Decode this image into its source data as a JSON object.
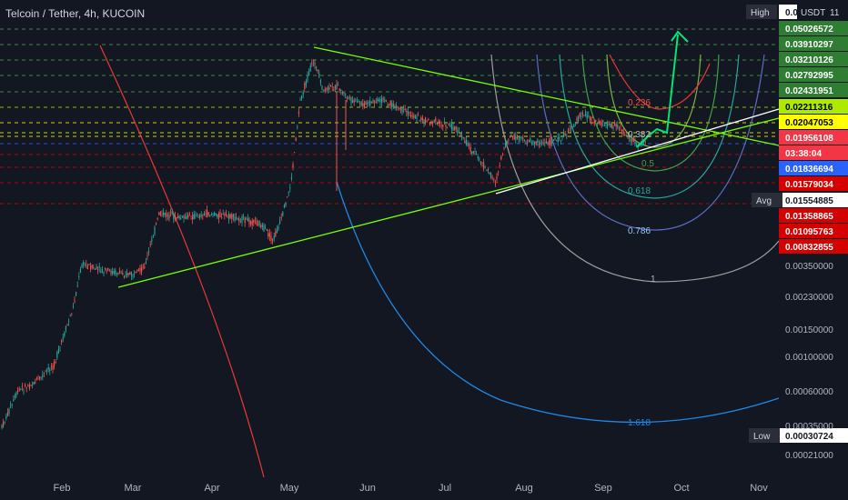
{
  "header": {
    "title": "Telcoin / Tether, 4h, KUCOIN"
  },
  "chart_data": {
    "type": "candlestick",
    "title": "Telcoin / Tether, 4h, KUCOIN",
    "yscale": "log",
    "x_ticks": [
      "Feb",
      "Mar",
      "Apr",
      "May",
      "Jun",
      "Jul",
      "Aug",
      "Sep",
      "Oct",
      "Nov"
    ],
    "price_tags": [
      {
        "label": "0.05026572",
        "bg": "#2e7d32",
        "fg": "#ffffff"
      },
      {
        "label": "0.03910297",
        "bg": "#2e7d32",
        "fg": "#ffffff"
      },
      {
        "label": "0.03210126",
        "bg": "#2e7d32",
        "fg": "#ffffff"
      },
      {
        "label": "0.02792995",
        "bg": "#2e7d32",
        "fg": "#ffffff"
      },
      {
        "label": "0.02431951",
        "bg": "#2e7d32",
        "fg": "#ffffff"
      },
      {
        "label": "0.02211316",
        "bg": "#aeea00",
        "fg": "#000000"
      },
      {
        "label": "0.02047053",
        "bg": "#ffff00",
        "fg": "#000000"
      },
      {
        "label": "0.01956108",
        "bg": "#f23645",
        "fg": "#ffffff"
      },
      {
        "label": "03:38:04",
        "bg": "#f23645",
        "fg": "#ffffff"
      },
      {
        "label": "0.01836694",
        "bg": "#2962ff",
        "fg": "#ffffff"
      },
      {
        "label": "0.01579034",
        "bg": "#d50000",
        "fg": "#ffffff"
      },
      {
        "label": "0.01554885",
        "bg": "#ffffff",
        "fg": "#131722"
      },
      {
        "label": "0.01358865",
        "bg": "#d50000",
        "fg": "#ffffff"
      },
      {
        "label": "0.01095763",
        "bg": "#d50000",
        "fg": "#ffffff"
      },
      {
        "label": "0.00832855",
        "bg": "#d50000",
        "fg": "#ffffff"
      },
      {
        "label": "0.00030724",
        "bg": "#ffffff",
        "fg": "#131722"
      }
    ],
    "axis_ticks": [
      "0.00350000",
      "0.00230000",
      "0.00150000",
      "0.00100000",
      "0.00060000",
      "0.00035000",
      "0.00021000"
    ],
    "side_labels": {
      "high": "High",
      "avg": "Avg",
      "low": "Low",
      "currency": "USDT",
      "badge": "11",
      "high_value": "0.0"
    },
    "fib_levels": [
      "0.236",
      "0.382",
      "0.5",
      "0.618",
      "0.786",
      "1",
      "1.618"
    ],
    "colors": {
      "background": "#131722",
      "up": "#26a69a",
      "down": "#ef5350",
      "trendline": "#76ff03",
      "upper_trendline": "#ffffff"
    }
  }
}
